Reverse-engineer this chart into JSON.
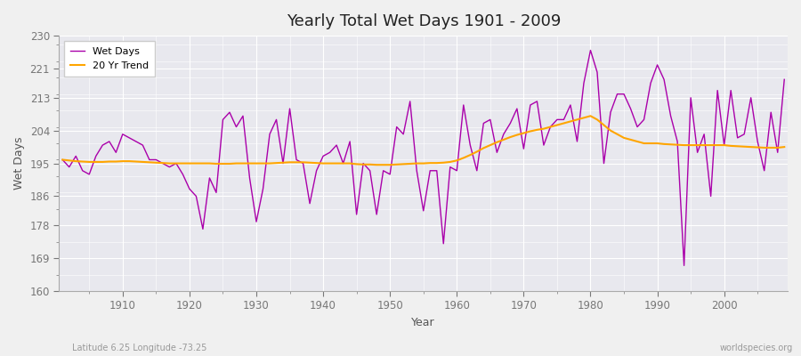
{
  "title": "Yearly Total Wet Days 1901 - 2009",
  "xlabel": "Year",
  "ylabel": "Wet Days",
  "footnote_left": "Latitude 6.25 Longitude -73.25",
  "footnote_right": "worldspecies.org",
  "legend_wet": "Wet Days",
  "legend_trend": "20 Yr Trend",
  "wet_color": "#aa00aa",
  "trend_color": "#ffa500",
  "bg_outer": "#f0f0f0",
  "bg_plot": "#e8e8ee",
  "ylim": [
    160,
    230
  ],
  "yticks": [
    160,
    169,
    178,
    186,
    195,
    204,
    213,
    221,
    230
  ],
  "years": [
    1901,
    1902,
    1903,
    1904,
    1905,
    1906,
    1907,
    1908,
    1909,
    1910,
    1911,
    1912,
    1913,
    1914,
    1915,
    1916,
    1917,
    1918,
    1919,
    1920,
    1921,
    1922,
    1923,
    1924,
    1925,
    1926,
    1927,
    1928,
    1929,
    1930,
    1931,
    1932,
    1933,
    1934,
    1935,
    1936,
    1937,
    1938,
    1939,
    1940,
    1941,
    1942,
    1943,
    1944,
    1945,
    1946,
    1947,
    1948,
    1949,
    1950,
    1951,
    1952,
    1953,
    1954,
    1955,
    1956,
    1957,
    1958,
    1959,
    1960,
    1961,
    1962,
    1963,
    1964,
    1965,
    1966,
    1967,
    1968,
    1969,
    1970,
    1971,
    1972,
    1973,
    1974,
    1975,
    1976,
    1977,
    1978,
    1979,
    1980,
    1981,
    1982,
    1983,
    1984,
    1985,
    1986,
    1987,
    1988,
    1989,
    1990,
    1991,
    1992,
    1993,
    1994,
    1995,
    1996,
    1997,
    1998,
    1999,
    2000,
    2001,
    2002,
    2003,
    2004,
    2005,
    2006,
    2007,
    2008,
    2009
  ],
  "wet_days": [
    196,
    194,
    197,
    193,
    192,
    197,
    200,
    201,
    198,
    203,
    202,
    201,
    200,
    196,
    196,
    195,
    194,
    195,
    192,
    188,
    186,
    177,
    191,
    187,
    207,
    209,
    205,
    208,
    191,
    179,
    188,
    203,
    207,
    195,
    210,
    196,
    195,
    184,
    193,
    197,
    198,
    200,
    195,
    201,
    181,
    195,
    193,
    181,
    193,
    192,
    205,
    203,
    212,
    193,
    182,
    193,
    193,
    173,
    194,
    193,
    211,
    200,
    193,
    206,
    207,
    198,
    203,
    206,
    210,
    199,
    211,
    212,
    200,
    205,
    207,
    207,
    211,
    201,
    217,
    226,
    220,
    195,
    209,
    214,
    214,
    210,
    205,
    207,
    217,
    222,
    218,
    208,
    201,
    167,
    213,
    198,
    203,
    186,
    215,
    200,
    215,
    202,
    203,
    213,
    201,
    193,
    209,
    198,
    218
  ],
  "trend_vals": [
    196.0,
    195.8,
    195.6,
    195.5,
    195.4,
    195.4,
    195.4,
    195.5,
    195.5,
    195.6,
    195.6,
    195.5,
    195.4,
    195.3,
    195.2,
    195.1,
    195.0,
    195.0,
    195.0,
    195.0,
    195.0,
    195.0,
    195.0,
    194.9,
    194.9,
    194.9,
    195.0,
    195.0,
    195.0,
    195.0,
    195.0,
    195.0,
    195.1,
    195.2,
    195.3,
    195.3,
    195.3,
    195.2,
    195.1,
    195.0,
    195.0,
    195.0,
    195.0,
    195.0,
    194.8,
    194.7,
    194.7,
    194.6,
    194.6,
    194.6,
    194.7,
    194.8,
    194.9,
    195.0,
    195.0,
    195.1,
    195.1,
    195.2,
    195.4,
    195.8,
    196.5,
    197.3,
    198.2,
    199.2,
    200.0,
    200.8,
    201.5,
    202.2,
    202.8,
    203.3,
    203.8,
    204.2,
    204.5,
    205.0,
    205.5,
    206.0,
    206.5,
    207.0,
    207.5,
    208.0,
    207.0,
    205.5,
    204.0,
    203.0,
    202.0,
    201.5,
    201.0,
    200.5,
    200.5,
    200.5,
    200.3,
    200.2,
    200.1,
    200.0,
    200.0,
    200.0,
    200.0,
    200.0,
    200.0,
    200.0,
    199.8,
    199.7,
    199.6,
    199.5,
    199.4,
    199.3,
    199.3,
    199.3,
    199.5
  ]
}
